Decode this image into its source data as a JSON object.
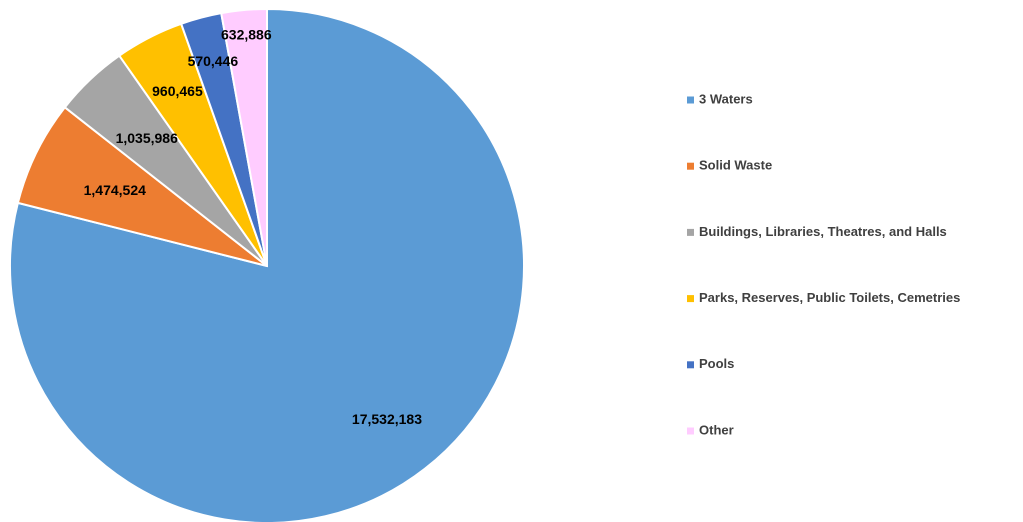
{
  "chart_data": {
    "type": "pie",
    "categories": [
      "3 Waters",
      "Solid Waste",
      "Buildings, Libraries, Theatres, and Halls",
      "Parks, Reserves, Public Toilets, Cemetries",
      "Pools",
      "Other"
    ],
    "values": [
      17532183,
      1474524,
      1035986,
      960465,
      570446,
      632886
    ],
    "value_labels": [
      "17,532,183",
      "1,474,524",
      "1,035,986",
      "960,465",
      "570,446",
      "632,886"
    ],
    "colors": [
      "#5b9bd5",
      "#ed7d31",
      "#a5a5a5",
      "#ffc000",
      "#4472c4",
      "#ffccff"
    ],
    "legend": "right"
  }
}
